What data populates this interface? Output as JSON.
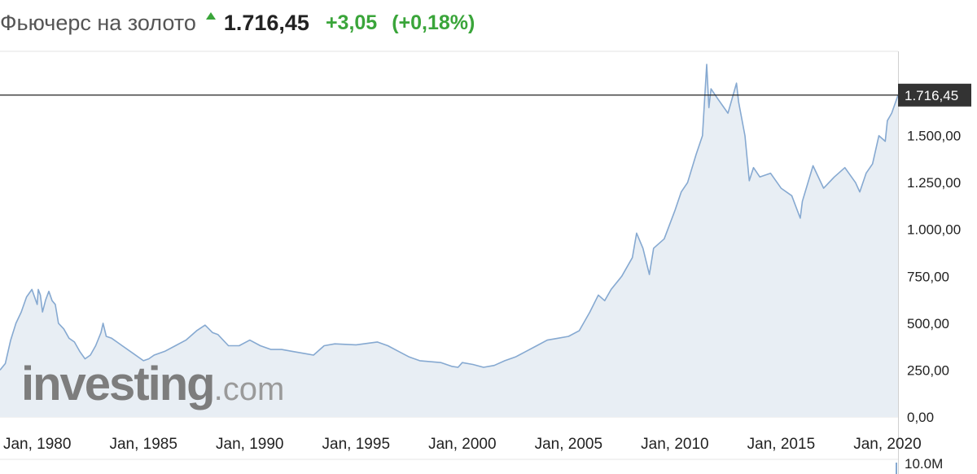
{
  "header": {
    "title": "Фьючерс на золото",
    "price": "1.716,45",
    "change": "+3,05",
    "change_pct": "(+0,18%)",
    "up_color": "#3aa53a",
    "arrow_icon": "arrow-up-icon"
  },
  "watermark": {
    "main": "investing",
    "suffix": ".com"
  },
  "colors": {
    "line": "#86a9d1",
    "fill": "#e8eef4",
    "price_label_bg": "#333333"
  },
  "chart_data": {
    "type": "area",
    "title": "",
    "xlabel": "",
    "ylabel": "",
    "ylim": [
      0,
      1950
    ],
    "x_range": [
      1978.25,
      2020.5
    ],
    "grid": false,
    "y_ticks": [
      {
        "value": 1500,
        "label": "1.500,00"
      },
      {
        "value": 1250,
        "label": "1.250,00"
      },
      {
        "value": 1000,
        "label": "1.000,00"
      },
      {
        "value": 750,
        "label": "750,00"
      },
      {
        "value": 500,
        "label": "500,00"
      },
      {
        "value": 250,
        "label": "250,00"
      },
      {
        "value": 0,
        "label": "0,00"
      }
    ],
    "x_ticks": [
      {
        "value": 1980,
        "label": "Jan, 1980"
      },
      {
        "value": 1985,
        "label": "Jan, 1985"
      },
      {
        "value": 1990,
        "label": "Jan, 1990"
      },
      {
        "value": 1995,
        "label": "Jan, 1995"
      },
      {
        "value": 2000,
        "label": "Jan, 2000"
      },
      {
        "value": 2005,
        "label": "Jan, 2005"
      },
      {
        "value": 2010,
        "label": "Jan, 2010"
      },
      {
        "value": 2015,
        "label": "Jan, 2015"
      },
      {
        "value": 2020,
        "label": "Jan, 2020"
      }
    ],
    "current_price": {
      "value": 1716.45,
      "label": "1.716,45"
    },
    "volume_label": "10.0M",
    "series": [
      {
        "x": [
          1978.25,
          1978.5,
          1978.75,
          1979.0,
          1979.25,
          1979.5,
          1979.75,
          1980.0,
          1980.05,
          1980.15,
          1980.25,
          1980.4,
          1980.55,
          1980.7,
          1980.85,
          1981.0,
          1981.25,
          1981.5,
          1981.75,
          1982.0,
          1982.25,
          1982.5,
          1982.75,
          1983.0,
          1983.1,
          1983.25,
          1983.5,
          1983.75,
          1984.0,
          1984.5,
          1985.0,
          1985.25,
          1985.5,
          1986.0,
          1986.5,
          1987.0,
          1987.5,
          1987.9,
          1988.25,
          1988.5,
          1989.0,
          1989.5,
          1990.0,
          1990.5,
          1991.0,
          1991.5,
          1992.0,
          1992.5,
          1993.0,
          1993.5,
          1994.0,
          1995.0,
          1996.0,
          1996.5,
          1997.0,
          1997.5,
          1998.0,
          1999.0,
          1999.5,
          1999.8,
          2000.0,
          2000.5,
          2001.0,
          2001.5,
          2002.0,
          2002.5,
          2003.0,
          2003.5,
          2004.0,
          2004.5,
          2005.0,
          2005.5,
          2006.0,
          2006.4,
          2006.7,
          2007.0,
          2007.5,
          2008.0,
          2008.2,
          2008.5,
          2008.8,
          2009.0,
          2009.5,
          2010.0,
          2010.3,
          2010.6,
          2011.0,
          2011.3,
          2011.5,
          2011.6,
          2011.7,
          2012.0,
          2012.5,
          2012.9,
          2013.0,
          2013.3,
          2013.5,
          2013.7,
          2014.0,
          2014.5,
          2015.0,
          2015.5,
          2015.9,
          2016.0,
          2016.5,
          2017.0,
          2017.5,
          2018.0,
          2018.5,
          2018.7,
          2019.0,
          2019.3,
          2019.6,
          2019.9,
          2020.0,
          2020.2,
          2020.5
        ],
        "y": [
          250,
          285,
          410,
          500,
          560,
          640,
          680,
          600,
          680,
          650,
          560,
          625,
          670,
          620,
          600,
          500,
          470,
          420,
          400,
          350,
          310,
          330,
          380,
          450,
          500,
          430,
          420,
          400,
          380,
          340,
          300,
          310,
          330,
          350,
          380,
          410,
          460,
          490,
          450,
          440,
          380,
          380,
          410,
          380,
          360,
          360,
          350,
          340,
          330,
          380,
          390,
          385,
          400,
          380,
          350,
          320,
          300,
          290,
          270,
          265,
          290,
          280,
          265,
          275,
          300,
          320,
          350,
          380,
          410,
          420,
          430,
          460,
          560,
          650,
          620,
          680,
          750,
          850,
          980,
          900,
          760,
          900,
          950,
          1100,
          1200,
          1250,
          1400,
          1500,
          1880,
          1650,
          1750,
          1700,
          1620,
          1780,
          1680,
          1500,
          1260,
          1330,
          1280,
          1300,
          1220,
          1180,
          1060,
          1150,
          1340,
          1220,
          1280,
          1330,
          1250,
          1200,
          1300,
          1350,
          1500,
          1470,
          1580,
          1620,
          1716
        ]
      }
    ]
  }
}
